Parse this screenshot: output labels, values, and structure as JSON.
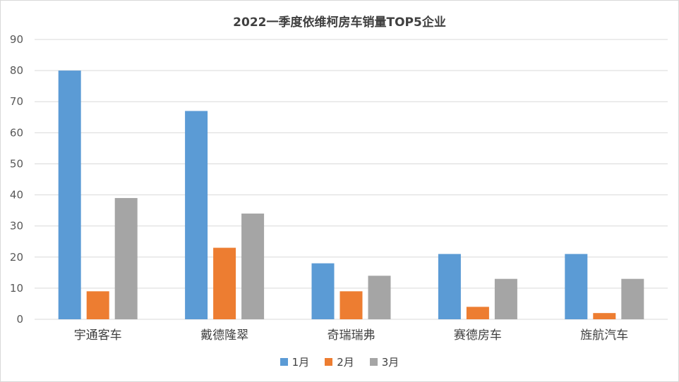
{
  "chart_data": {
    "type": "bar",
    "title": "2022一季度依维柯房车销量TOP5企业",
    "categories": [
      "宇通客车",
      "戴德隆翠",
      "奇瑞瑞弗",
      "赛德房车",
      "旌航汽车"
    ],
    "series": [
      {
        "name": "1月",
        "color": "#5b9bd5",
        "values": [
          80,
          67,
          18,
          21,
          21
        ]
      },
      {
        "name": "2月",
        "color": "#ed7d31",
        "values": [
          9,
          23,
          9,
          4,
          2
        ]
      },
      {
        "name": "3月",
        "color": "#a5a5a5",
        "values": [
          39,
          34,
          14,
          13,
          13
        ]
      }
    ],
    "ylim": [
      0,
      90
    ],
    "yticks": [
      0,
      10,
      20,
      30,
      40,
      50,
      60,
      70,
      80,
      90
    ],
    "grid": true,
    "legend_position": "bottom"
  }
}
